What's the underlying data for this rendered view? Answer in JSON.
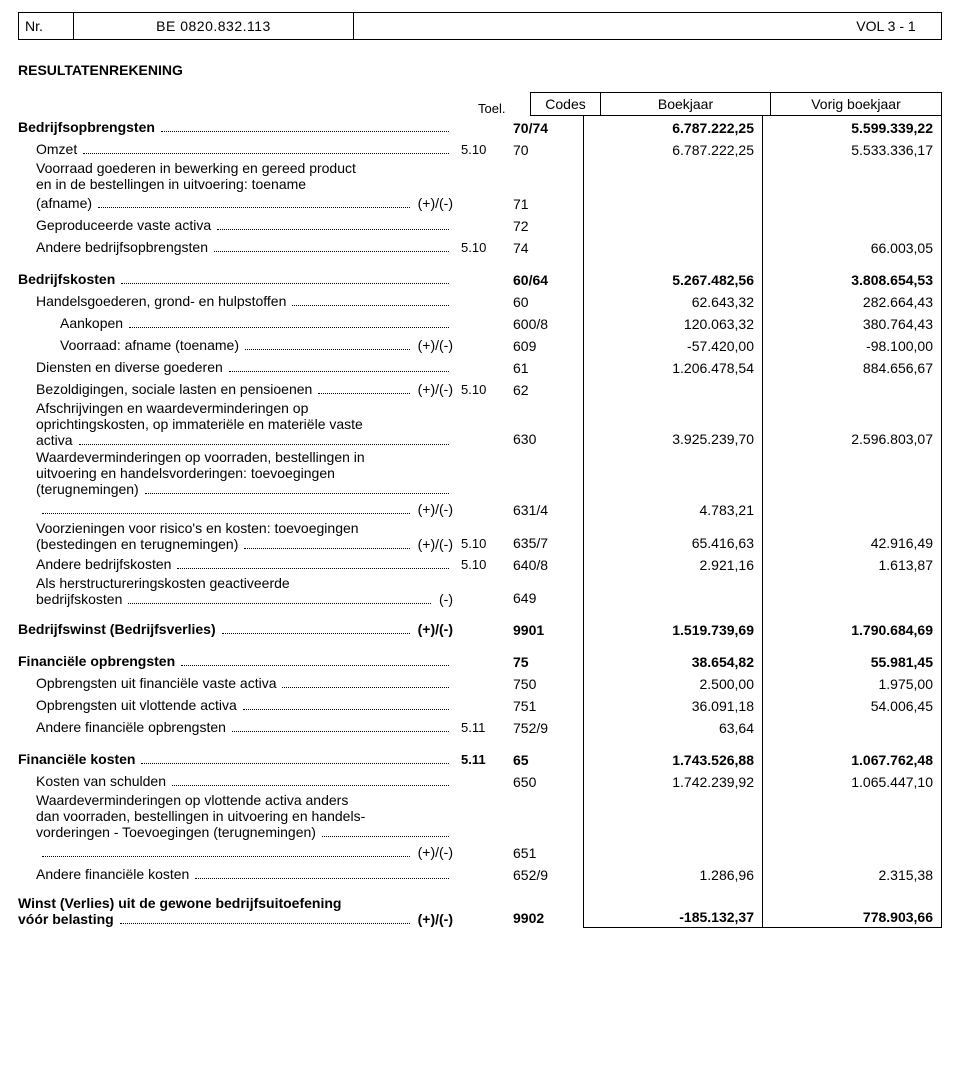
{
  "header": {
    "nr_label": "Nr.",
    "id": "BE 0820.832.113",
    "vol": "VOL 3  -  1"
  },
  "title": "RESULTATENREKENING",
  "columns": {
    "toel": "Toel.",
    "codes": "Codes",
    "boekjaar": "Boekjaar",
    "vorig": "Vorig boekjaar"
  },
  "colors": {
    "text": "#000000",
    "bg": "#ffffff",
    "border": "#000000"
  },
  "rows": [
    {
      "label": "Bedrijfsopbrengsten",
      "bold": true,
      "dots": true,
      "code": "70/74",
      "cur": "6.787.222,25",
      "prev": "5.599.339,22"
    },
    {
      "label": "Omzet",
      "dots": true,
      "indent": 1,
      "toel": "5.10",
      "code": "70",
      "cur": "6.787.222,25",
      "prev": "5.533.336,17"
    },
    {
      "label_lines": [
        "Voorraad goederen in bewerking en gereed product",
        "en in de bestellingen in uitvoering: toename"
      ],
      "indent": 1,
      "no_values": true
    },
    {
      "label": "(afname)",
      "dots": true,
      "suffix": "(+)/(-)",
      "indent": 1,
      "code": "71"
    },
    {
      "label": "Geproduceerde vaste activa",
      "dots": true,
      "indent": 1,
      "code": "72"
    },
    {
      "label": "Andere bedrijfsopbrengsten",
      "dots": true,
      "indent": 1,
      "toel": "5.10",
      "code": "74",
      "prev": "66.003,05"
    },
    {
      "spacer": true
    },
    {
      "label": "Bedrijfskosten",
      "bold": true,
      "dots": true,
      "code": "60/64",
      "cur": "5.267.482,56",
      "prev": "3.808.654,53"
    },
    {
      "label": "Handelsgoederen, grond- en hulpstoffen",
      "dots": true,
      "indent": 1,
      "code": "60",
      "cur": "62.643,32",
      "prev": "282.664,43"
    },
    {
      "label": "Aankopen",
      "dots": true,
      "indent": 2,
      "code": "600/8",
      "cur": "120.063,32",
      "prev": "380.764,43"
    },
    {
      "label": "Voorraad: afname (toename)",
      "dots": true,
      "suffix": "(+)/(-)",
      "indent": 2,
      "code": "609",
      "cur": "-57.420,00",
      "prev": "-98.100,00"
    },
    {
      "label": "Diensten en diverse goederen",
      "dots": true,
      "indent": 1,
      "code": "61",
      "cur": "1.206.478,54",
      "prev": "884.656,67"
    },
    {
      "label": "Bezoldigingen, sociale lasten en pensioenen",
      "dots": true,
      "suffix": "(+)/(-)",
      "indent": 1,
      "toel": "5.10",
      "code": "62"
    },
    {
      "label_lines": [
        "Afschrijvingen en waardeverminderingen op",
        "oprichtingskosten, op immateriële en materiële vaste",
        "activa"
      ],
      "dots_last": true,
      "indent": 1,
      "code": "630",
      "cur": "3.925.239,70",
      "prev": "2.596.803,07",
      "values_on_last": true
    },
    {
      "label_lines": [
        "Waardeverminderingen op voorraden, bestellingen in",
        "uitvoering en handelsvorderingen: toevoegingen",
        "(terugnemingen)"
      ],
      "dots_last": true,
      "indent": 1,
      "no_values": true
    },
    {
      "label": "",
      "dots": true,
      "suffix": "(+)/(-)",
      "indent": 1,
      "code": "631/4",
      "cur": "4.783,21"
    },
    {
      "label_lines": [
        "Voorzieningen voor risico's en kosten: toevoegingen",
        "(bestedingen en terugnemingen)"
      ],
      "dots_last": true,
      "suffix": "(+)/(-)",
      "indent": 1,
      "toel": "5.10",
      "code": "635/7",
      "cur": "65.416,63",
      "prev": "42.916,49",
      "values_on_last": true
    },
    {
      "label": "Andere bedrijfskosten",
      "dots": true,
      "indent": 1,
      "toel": "5.10",
      "code": "640/8",
      "cur": "2.921,16",
      "prev": "1.613,87"
    },
    {
      "label_lines": [
        "Als herstructureringskosten geactiveerde",
        "bedrijfskosten"
      ],
      "dots_last": true,
      "suffix": "(-)",
      "indent": 1,
      "code": "649",
      "values_on_last": true
    },
    {
      "spacer": true
    },
    {
      "label": "Bedrijfswinst (Bedrijfsverlies)",
      "bold": true,
      "dots": true,
      "suffix": "(+)/(-)",
      "code": "9901",
      "cur": "1.519.739,69",
      "prev": "1.790.684,69"
    },
    {
      "spacer": true
    },
    {
      "label": "Financiële opbrengsten",
      "bold": true,
      "dots": true,
      "code": "75",
      "cur": "38.654,82",
      "prev": "55.981,45"
    },
    {
      "label": "Opbrengsten uit financiële vaste activa",
      "dots": true,
      "indent": 1,
      "code": "750",
      "cur": "2.500,00",
      "prev": "1.975,00"
    },
    {
      "label": "Opbrengsten uit vlottende activa",
      "dots": true,
      "indent": 1,
      "code": "751",
      "cur": "36.091,18",
      "prev": "54.006,45"
    },
    {
      "label": "Andere financiële opbrengsten",
      "dots": true,
      "indent": 1,
      "toel": "5.11",
      "code": "752/9",
      "cur": "63,64"
    },
    {
      "spacer": true
    },
    {
      "label": "Financiële kosten",
      "bold": true,
      "dots": true,
      "toel": "5.11",
      "code": "65",
      "cur": "1.743.526,88",
      "prev": "1.067.762,48"
    },
    {
      "label": "Kosten van schulden",
      "dots": true,
      "indent": 1,
      "code": "650",
      "cur": "1.742.239,92",
      "prev": "1.065.447,10"
    },
    {
      "label_lines": [
        "Waardeverminderingen op vlottende activa anders",
        "dan voorraden, bestellingen in uitvoering en handels-",
        "vorderingen - Toevoegingen (terugnemingen)"
      ],
      "dots_last": true,
      "indent": 1,
      "no_values": true
    },
    {
      "label": "",
      "dots": true,
      "suffix": "(+)/(-)",
      "indent": 1,
      "code": "651"
    },
    {
      "label": "Andere financiële kosten",
      "dots": true,
      "indent": 1,
      "code": "652/9",
      "cur": "1.286,96",
      "prev": "2.315,38"
    },
    {
      "spacer": true
    },
    {
      "label_lines": [
        "Winst (Verlies) uit de gewone bedrijfsuitoefening",
        "vóór belasting"
      ],
      "bold": true,
      "dots_last": true,
      "suffix": "(+)/(-)",
      "code": "9902",
      "cur": "-185.132,37",
      "prev": "778.903,66",
      "values_on_last": true
    }
  ]
}
